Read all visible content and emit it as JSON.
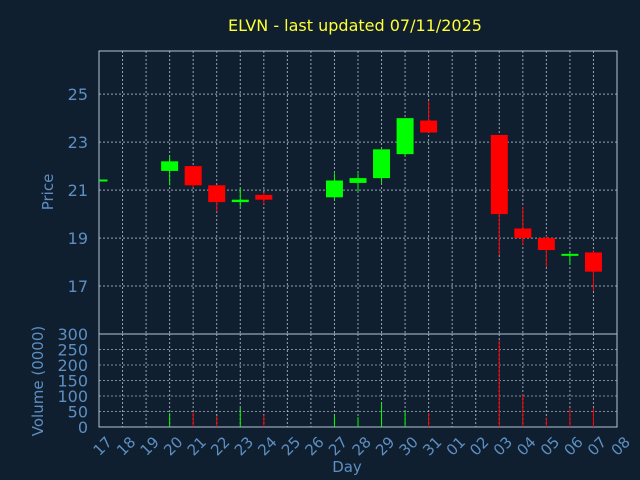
{
  "title": "ELVN - last updated 07/11/2025",
  "colors": {
    "background": "#0f1f30",
    "title": "#ffff33",
    "axis_text": "#5d8fc2",
    "plot_border": "#b0c4d8",
    "grid": "#c8d2dc",
    "up": "#00ff00",
    "down": "#ff0000"
  },
  "chart_data": [
    {
      "type": "candlestick",
      "ylabel": "Price",
      "xlabel": "",
      "ylim": [
        15.0,
        26.8
      ],
      "yticks": [
        17,
        19,
        21,
        23,
        25
      ],
      "grid": true,
      "candles": [
        {
          "day": 17,
          "open": 21.4,
          "high": 21.4,
          "low": 21.4,
          "close": 21.4
        },
        {
          "day": 20,
          "open": 21.8,
          "high": 22.4,
          "low": 21.2,
          "close": 22.2
        },
        {
          "day": 21,
          "open": 22.0,
          "high": 22.0,
          "low": 21.1,
          "close": 21.2
        },
        {
          "day": 22,
          "open": 21.2,
          "high": 21.2,
          "low": 20.1,
          "close": 20.5
        },
        {
          "day": 23,
          "open": 20.5,
          "high": 21.1,
          "low": 20.3,
          "close": 20.6
        },
        {
          "day": 24,
          "open": 20.8,
          "high": 20.9,
          "low": 20.4,
          "close": 20.6
        },
        {
          "day": 27,
          "open": 20.7,
          "high": 21.7,
          "low": 20.6,
          "close": 21.4
        },
        {
          "day": 28,
          "open": 21.3,
          "high": 21.7,
          "low": 20.9,
          "close": 21.5
        },
        {
          "day": 29,
          "open": 21.5,
          "high": 22.7,
          "low": 21.3,
          "close": 22.7
        },
        {
          "day": 30,
          "open": 22.5,
          "high": 24.0,
          "low": 22.4,
          "close": 24.0
        },
        {
          "day": 31,
          "open": 23.9,
          "high": 24.7,
          "low": 23.4,
          "close": 23.4
        },
        {
          "day": 3,
          "open": 23.3,
          "high": 23.3,
          "low": 18.3,
          "close": 20.0
        },
        {
          "day": 4,
          "open": 19.4,
          "high": 20.3,
          "low": 18.7,
          "close": 19.0
        },
        {
          "day": 5,
          "open": 19.0,
          "high": 19.1,
          "low": 17.8,
          "close": 18.5
        },
        {
          "day": 6,
          "open": 18.3,
          "high": 18.4,
          "low": 17.9,
          "close": 18.3
        },
        {
          "day": 7,
          "open": 18.4,
          "high": 18.5,
          "low": 16.8,
          "close": 17.6
        }
      ]
    },
    {
      "type": "bar",
      "ylabel": "Volume (0000)",
      "xlabel": "Day",
      "ylim": [
        0,
        300
      ],
      "yticks": [
        0,
        50,
        100,
        150,
        200,
        250,
        300
      ],
      "grid": true,
      "categories": [
        "17",
        "18",
        "19",
        "20",
        "21",
        "22",
        "23",
        "24",
        "25",
        "26",
        "27",
        "28",
        "29",
        "30",
        "31",
        "01",
        "02",
        "03",
        "04",
        "05",
        "06",
        "07",
        "08"
      ],
      "volumes": [
        {
          "day": 20,
          "value": 45,
          "color": "up"
        },
        {
          "day": 21,
          "value": 48,
          "color": "down"
        },
        {
          "day": 22,
          "value": 35,
          "color": "down"
        },
        {
          "day": 23,
          "value": 62,
          "color": "up"
        },
        {
          "day": 24,
          "value": 38,
          "color": "down"
        },
        {
          "day": 27,
          "value": 38,
          "color": "up"
        },
        {
          "day": 28,
          "value": 32,
          "color": "up"
        },
        {
          "day": 29,
          "value": 78,
          "color": "up"
        },
        {
          "day": 30,
          "value": 50,
          "color": "up"
        },
        {
          "day": 31,
          "value": 45,
          "color": "down"
        },
        {
          "day": 3,
          "value": 280,
          "color": "down"
        },
        {
          "day": 4,
          "value": 105,
          "color": "down"
        },
        {
          "day": 5,
          "value": 30,
          "color": "down"
        },
        {
          "day": 6,
          "value": 60,
          "color": "down"
        },
        {
          "day": 7,
          "value": 62,
          "color": "down"
        }
      ]
    }
  ]
}
